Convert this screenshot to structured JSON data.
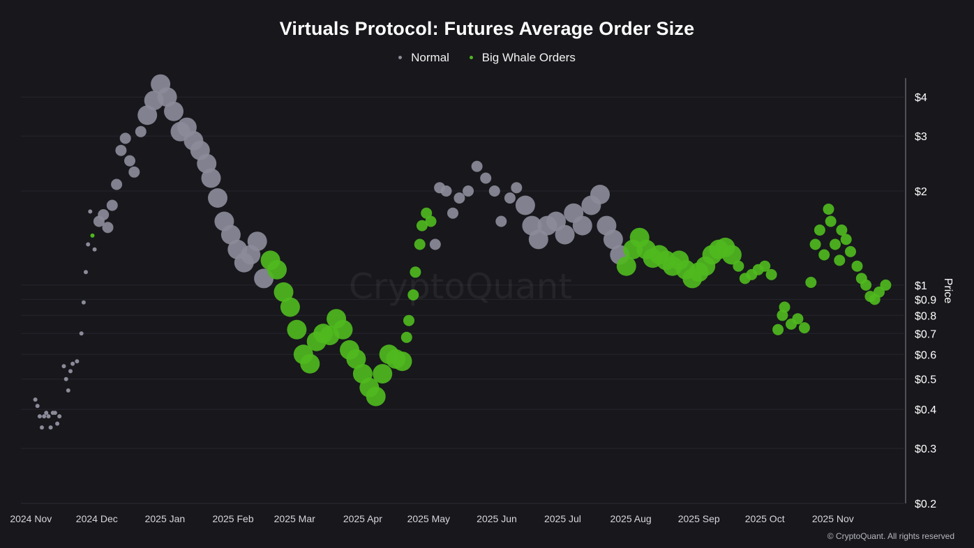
{
  "chart_data": {
    "type": "scatter",
    "title": "Virtuals Protocol: Futures Average Order Size",
    "ylabel": "Price",
    "yscale": "log",
    "ylim": [
      0.2,
      4.6
    ],
    "xlim": [
      "2024-10-30",
      "2025-11-29"
    ],
    "x_tick_labels": [
      "2024 Nov",
      "2024 Dec",
      "2025 Jan",
      "2025 Feb",
      "2025 Mar",
      "2025 Apr",
      "2025 May",
      "2025 Jun",
      "2025 Jul",
      "2025 Aug",
      "2025 Sep",
      "2025 Oct",
      "2025 Nov"
    ],
    "x_tick_dates": [
      "2024-11-01",
      "2024-12-01",
      "2025-01-01",
      "2025-02-01",
      "2025-03-01",
      "2025-04-01",
      "2025-05-01",
      "2025-06-01",
      "2025-07-01",
      "2025-08-01",
      "2025-09-01",
      "2025-10-01",
      "2025-11-01"
    ],
    "y_ticks": [
      4,
      3,
      2,
      1,
      0.9,
      0.8,
      0.7,
      0.6,
      0.5,
      0.4,
      0.3,
      0.2
    ],
    "y_tick_labels": [
      "$4",
      "$3",
      "$2",
      "$1",
      "$0.9",
      "$0.8",
      "$0.7",
      "$0.6",
      "$0.5",
      "$0.4",
      "$0.3",
      "$0.2"
    ],
    "grid": "horizontal",
    "legend_position": "top-center",
    "watermark": "CryptoQuant",
    "copyright": "© CryptoQuant. All rights reserved",
    "series": [
      {
        "name": "Normal",
        "color": "#8b8b99"
      },
      {
        "name": "Big Whale Orders",
        "color": "#4fb81e"
      }
    ],
    "size_note": "point size reflects average order size: s = small, m = medium, l = large",
    "points": [
      [
        "2024-11-03",
        0.43,
        "Normal",
        "s"
      ],
      [
        "2024-11-04",
        0.41,
        "Normal",
        "s"
      ],
      [
        "2024-11-05",
        0.38,
        "Normal",
        "s"
      ],
      [
        "2024-11-06",
        0.35,
        "Normal",
        "s"
      ],
      [
        "2024-11-07",
        0.38,
        "Normal",
        "s"
      ],
      [
        "2024-11-08",
        0.39,
        "Normal",
        "s"
      ],
      [
        "2024-11-09",
        0.38,
        "Normal",
        "s"
      ],
      [
        "2024-11-10",
        0.35,
        "Normal",
        "s"
      ],
      [
        "2024-11-11",
        0.39,
        "Normal",
        "s"
      ],
      [
        "2024-11-12",
        0.39,
        "Normal",
        "s"
      ],
      [
        "2024-11-13",
        0.36,
        "Normal",
        "s"
      ],
      [
        "2024-11-14",
        0.38,
        "Normal",
        "s"
      ],
      [
        "2024-11-16",
        0.55,
        "Normal",
        "s"
      ],
      [
        "2024-11-17",
        0.5,
        "Normal",
        "s"
      ],
      [
        "2024-11-18",
        0.46,
        "Normal",
        "s"
      ],
      [
        "2024-11-19",
        0.53,
        "Normal",
        "s"
      ],
      [
        "2024-11-20",
        0.56,
        "Normal",
        "s"
      ],
      [
        "2024-11-22",
        0.57,
        "Normal",
        "s"
      ],
      [
        "2024-11-24",
        0.7,
        "Normal",
        "s"
      ],
      [
        "2024-11-25",
        0.88,
        "Normal",
        "s"
      ],
      [
        "2024-11-26",
        1.1,
        "Normal",
        "s"
      ],
      [
        "2024-11-27",
        1.35,
        "Normal",
        "s"
      ],
      [
        "2024-11-28",
        1.72,
        "Normal",
        "s"
      ],
      [
        "2024-11-29",
        1.44,
        "Big Whale Orders",
        "s"
      ],
      [
        "2024-11-30",
        1.3,
        "Normal",
        "s"
      ],
      [
        "2024-12-02",
        1.6,
        "Normal",
        "m"
      ],
      [
        "2024-12-04",
        1.68,
        "Normal",
        "m"
      ],
      [
        "2024-12-06",
        1.53,
        "Normal",
        "m"
      ],
      [
        "2024-12-08",
        1.8,
        "Normal",
        "m"
      ],
      [
        "2024-12-10",
        2.1,
        "Normal",
        "m"
      ],
      [
        "2024-12-12",
        2.7,
        "Normal",
        "m"
      ],
      [
        "2024-12-14",
        2.95,
        "Normal",
        "m"
      ],
      [
        "2024-12-16",
        2.5,
        "Normal",
        "m"
      ],
      [
        "2024-12-18",
        2.3,
        "Normal",
        "m"
      ],
      [
        "2024-12-21",
        3.1,
        "Normal",
        "m"
      ],
      [
        "2024-12-24",
        3.5,
        "Normal",
        "l"
      ],
      [
        "2024-12-27",
        3.9,
        "Normal",
        "l"
      ],
      [
        "2024-12-30",
        4.4,
        "Normal",
        "l"
      ],
      [
        "2025-01-02",
        4.0,
        "Normal",
        "l"
      ],
      [
        "2025-01-05",
        3.6,
        "Normal",
        "l"
      ],
      [
        "2025-01-08",
        3.1,
        "Normal",
        "l"
      ],
      [
        "2025-01-11",
        3.2,
        "Normal",
        "l"
      ],
      [
        "2025-01-14",
        2.9,
        "Normal",
        "l"
      ],
      [
        "2025-01-17",
        2.7,
        "Normal",
        "l"
      ],
      [
        "2025-01-20",
        2.45,
        "Normal",
        "l"
      ],
      [
        "2025-01-22",
        2.2,
        "Normal",
        "l"
      ],
      [
        "2025-01-25",
        1.9,
        "Normal",
        "l"
      ],
      [
        "2025-01-28",
        1.6,
        "Normal",
        "l"
      ],
      [
        "2025-01-31",
        1.45,
        "Normal",
        "l"
      ],
      [
        "2025-02-03",
        1.3,
        "Normal",
        "l"
      ],
      [
        "2025-02-06",
        1.18,
        "Normal",
        "l"
      ],
      [
        "2025-02-09",
        1.25,
        "Normal",
        "l"
      ],
      [
        "2025-02-12",
        1.38,
        "Normal",
        "l"
      ],
      [
        "2025-02-15",
        1.05,
        "Normal",
        "l"
      ],
      [
        "2025-02-18",
        1.2,
        "Big Whale Orders",
        "l"
      ],
      [
        "2025-02-21",
        1.12,
        "Big Whale Orders",
        "l"
      ],
      [
        "2025-02-24",
        0.95,
        "Big Whale Orders",
        "l"
      ],
      [
        "2025-02-27",
        0.85,
        "Big Whale Orders",
        "l"
      ],
      [
        "2025-03-02",
        0.72,
        "Big Whale Orders",
        "l"
      ],
      [
        "2025-03-05",
        0.6,
        "Big Whale Orders",
        "l"
      ],
      [
        "2025-03-08",
        0.56,
        "Big Whale Orders",
        "l"
      ],
      [
        "2025-03-11",
        0.66,
        "Big Whale Orders",
        "l"
      ],
      [
        "2025-03-14",
        0.7,
        "Big Whale Orders",
        "l"
      ],
      [
        "2025-03-17",
        0.69,
        "Big Whale Orders",
        "l"
      ],
      [
        "2025-03-20",
        0.78,
        "Big Whale Orders",
        "l"
      ],
      [
        "2025-03-23",
        0.72,
        "Big Whale Orders",
        "l"
      ],
      [
        "2025-03-26",
        0.62,
        "Big Whale Orders",
        "l"
      ],
      [
        "2025-03-29",
        0.58,
        "Big Whale Orders",
        "l"
      ],
      [
        "2025-04-01",
        0.52,
        "Big Whale Orders",
        "l"
      ],
      [
        "2025-04-04",
        0.47,
        "Big Whale Orders",
        "l"
      ],
      [
        "2025-04-07",
        0.44,
        "Big Whale Orders",
        "l"
      ],
      [
        "2025-04-10",
        0.52,
        "Big Whale Orders",
        "l"
      ],
      [
        "2025-04-13",
        0.6,
        "Big Whale Orders",
        "l"
      ],
      [
        "2025-04-16",
        0.58,
        "Big Whale Orders",
        "l"
      ],
      [
        "2025-04-19",
        0.57,
        "Big Whale Orders",
        "l"
      ],
      [
        "2025-04-21",
        0.68,
        "Big Whale Orders",
        "m"
      ],
      [
        "2025-04-22",
        0.77,
        "Big Whale Orders",
        "m"
      ],
      [
        "2025-04-24",
        0.93,
        "Big Whale Orders",
        "m"
      ],
      [
        "2025-04-25",
        1.1,
        "Big Whale Orders",
        "m"
      ],
      [
        "2025-04-27",
        1.35,
        "Big Whale Orders",
        "m"
      ],
      [
        "2025-04-28",
        1.55,
        "Big Whale Orders",
        "m"
      ],
      [
        "2025-04-30",
        1.7,
        "Big Whale Orders",
        "m"
      ],
      [
        "2025-05-02",
        1.6,
        "Big Whale Orders",
        "m"
      ],
      [
        "2025-05-04",
        1.35,
        "Normal",
        "m"
      ],
      [
        "2025-05-06",
        2.05,
        "Normal",
        "m"
      ],
      [
        "2025-05-09",
        2.0,
        "Normal",
        "m"
      ],
      [
        "2025-05-12",
        1.7,
        "Normal",
        "m"
      ],
      [
        "2025-05-15",
        1.9,
        "Normal",
        "m"
      ],
      [
        "2025-05-19",
        2.0,
        "Normal",
        "m"
      ],
      [
        "2025-05-23",
        2.4,
        "Normal",
        "m"
      ],
      [
        "2025-05-27",
        2.2,
        "Normal",
        "m"
      ],
      [
        "2025-05-31",
        2.0,
        "Normal",
        "m"
      ],
      [
        "2025-06-03",
        1.6,
        "Normal",
        "m"
      ],
      [
        "2025-06-07",
        1.9,
        "Normal",
        "m"
      ],
      [
        "2025-06-10",
        2.05,
        "Normal",
        "m"
      ],
      [
        "2025-06-14",
        1.8,
        "Normal",
        "l"
      ],
      [
        "2025-06-17",
        1.55,
        "Normal",
        "l"
      ],
      [
        "2025-06-20",
        1.4,
        "Normal",
        "l"
      ],
      [
        "2025-06-24",
        1.55,
        "Normal",
        "l"
      ],
      [
        "2025-06-28",
        1.6,
        "Normal",
        "l"
      ],
      [
        "2025-07-02",
        1.45,
        "Normal",
        "l"
      ],
      [
        "2025-07-06",
        1.7,
        "Normal",
        "l"
      ],
      [
        "2025-07-10",
        1.55,
        "Normal",
        "l"
      ],
      [
        "2025-07-14",
        1.8,
        "Normal",
        "l"
      ],
      [
        "2025-07-18",
        1.95,
        "Normal",
        "l"
      ],
      [
        "2025-07-21",
        1.55,
        "Normal",
        "l"
      ],
      [
        "2025-07-24",
        1.4,
        "Normal",
        "l"
      ],
      [
        "2025-07-27",
        1.25,
        "Normal",
        "l"
      ],
      [
        "2025-07-30",
        1.15,
        "Big Whale Orders",
        "l"
      ],
      [
        "2025-08-02",
        1.3,
        "Big Whale Orders",
        "l"
      ],
      [
        "2025-08-05",
        1.42,
        "Big Whale Orders",
        "l"
      ],
      [
        "2025-08-08",
        1.3,
        "Big Whale Orders",
        "l"
      ],
      [
        "2025-08-11",
        1.22,
        "Big Whale Orders",
        "l"
      ],
      [
        "2025-08-14",
        1.25,
        "Big Whale Orders",
        "l"
      ],
      [
        "2025-08-17",
        1.2,
        "Big Whale Orders",
        "l"
      ],
      [
        "2025-08-20",
        1.15,
        "Big Whale Orders",
        "l"
      ],
      [
        "2025-08-23",
        1.2,
        "Big Whale Orders",
        "l"
      ],
      [
        "2025-08-26",
        1.12,
        "Big Whale Orders",
        "l"
      ],
      [
        "2025-08-29",
        1.05,
        "Big Whale Orders",
        "l"
      ],
      [
        "2025-09-01",
        1.1,
        "Big Whale Orders",
        "l"
      ],
      [
        "2025-09-04",
        1.15,
        "Big Whale Orders",
        "l"
      ],
      [
        "2025-09-07",
        1.25,
        "Big Whale Orders",
        "l"
      ],
      [
        "2025-09-10",
        1.3,
        "Big Whale Orders",
        "l"
      ],
      [
        "2025-09-13",
        1.32,
        "Big Whale Orders",
        "l"
      ],
      [
        "2025-09-16",
        1.25,
        "Big Whale Orders",
        "l"
      ],
      [
        "2025-09-19",
        1.15,
        "Big Whale Orders",
        "m"
      ],
      [
        "2025-09-22",
        1.05,
        "Big Whale Orders",
        "m"
      ],
      [
        "2025-09-25",
        1.08,
        "Big Whale Orders",
        "m"
      ],
      [
        "2025-09-28",
        1.12,
        "Big Whale Orders",
        "m"
      ],
      [
        "2025-10-01",
        1.15,
        "Big Whale Orders",
        "m"
      ],
      [
        "2025-10-04",
        1.08,
        "Big Whale Orders",
        "m"
      ],
      [
        "2025-10-07",
        0.72,
        "Big Whale Orders",
        "m"
      ],
      [
        "2025-10-09",
        0.8,
        "Big Whale Orders",
        "m"
      ],
      [
        "2025-10-10",
        0.85,
        "Big Whale Orders",
        "m"
      ],
      [
        "2025-10-13",
        0.75,
        "Big Whale Orders",
        "m"
      ],
      [
        "2025-10-16",
        0.78,
        "Big Whale Orders",
        "m"
      ],
      [
        "2025-10-19",
        0.73,
        "Big Whale Orders",
        "m"
      ],
      [
        "2025-10-22",
        1.02,
        "Big Whale Orders",
        "m"
      ],
      [
        "2025-10-24",
        1.35,
        "Big Whale Orders",
        "m"
      ],
      [
        "2025-10-26",
        1.5,
        "Big Whale Orders",
        "m"
      ],
      [
        "2025-10-28",
        1.25,
        "Big Whale Orders",
        "m"
      ],
      [
        "2025-10-30",
        1.75,
        "Big Whale Orders",
        "m"
      ],
      [
        "2025-10-31",
        1.6,
        "Big Whale Orders",
        "m"
      ],
      [
        "2025-11-02",
        1.35,
        "Big Whale Orders",
        "m"
      ],
      [
        "2025-11-04",
        1.2,
        "Big Whale Orders",
        "m"
      ],
      [
        "2025-11-05",
        1.5,
        "Big Whale Orders",
        "m"
      ],
      [
        "2025-11-07",
        1.4,
        "Big Whale Orders",
        "m"
      ],
      [
        "2025-11-09",
        1.28,
        "Big Whale Orders",
        "m"
      ],
      [
        "2025-11-12",
        1.15,
        "Big Whale Orders",
        "m"
      ],
      [
        "2025-11-14",
        1.05,
        "Big Whale Orders",
        "m"
      ],
      [
        "2025-11-16",
        1.0,
        "Big Whale Orders",
        "m"
      ],
      [
        "2025-11-18",
        0.92,
        "Big Whale Orders",
        "m"
      ],
      [
        "2025-11-20",
        0.9,
        "Big Whale Orders",
        "m"
      ],
      [
        "2025-11-22",
        0.95,
        "Big Whale Orders",
        "m"
      ],
      [
        "2025-11-25",
        1.0,
        "Big Whale Orders",
        "m"
      ]
    ]
  }
}
